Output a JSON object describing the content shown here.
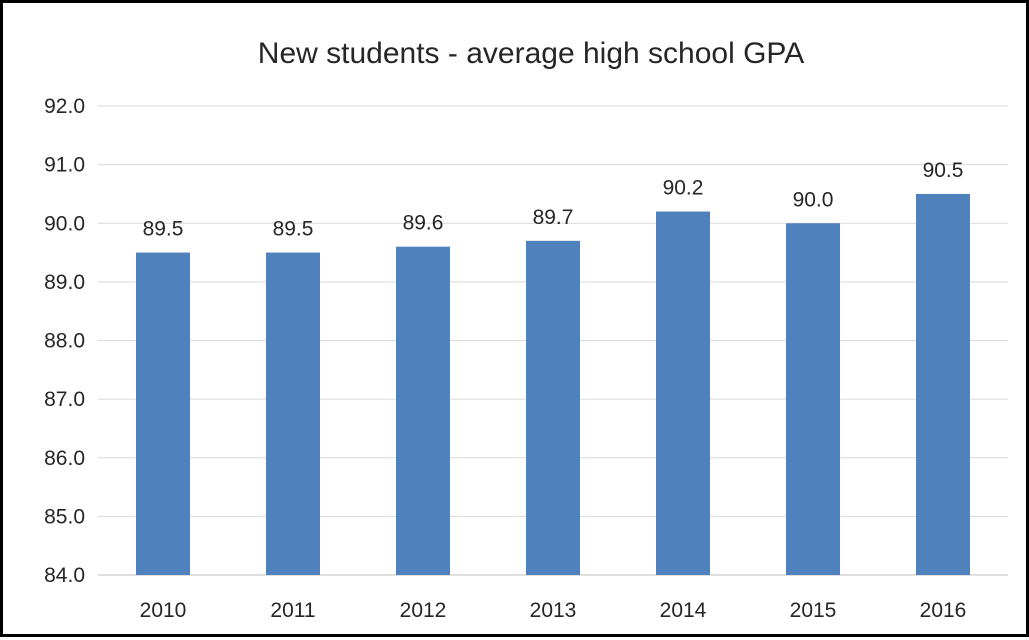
{
  "chart_data": {
    "type": "bar",
    "title": "New students - average high school GPA",
    "xlabel": "",
    "ylabel": "",
    "categories": [
      "2010",
      "2011",
      "2012",
      "2013",
      "2014",
      "2015",
      "2016"
    ],
    "values": [
      89.5,
      89.5,
      89.6,
      89.7,
      90.2,
      90.0,
      90.5
    ],
    "data_labels": [
      "89.5",
      "89.5",
      "89.6",
      "89.7",
      "90.2",
      "90.0",
      "90.5"
    ],
    "ylim": [
      84.0,
      92.0
    ],
    "yticks": [
      "84.0",
      "85.0",
      "86.0",
      "87.0",
      "88.0",
      "89.0",
      "90.0",
      "91.0",
      "92.0"
    ],
    "grid": true,
    "legend": "none",
    "bar_color": "#4f81bd"
  }
}
